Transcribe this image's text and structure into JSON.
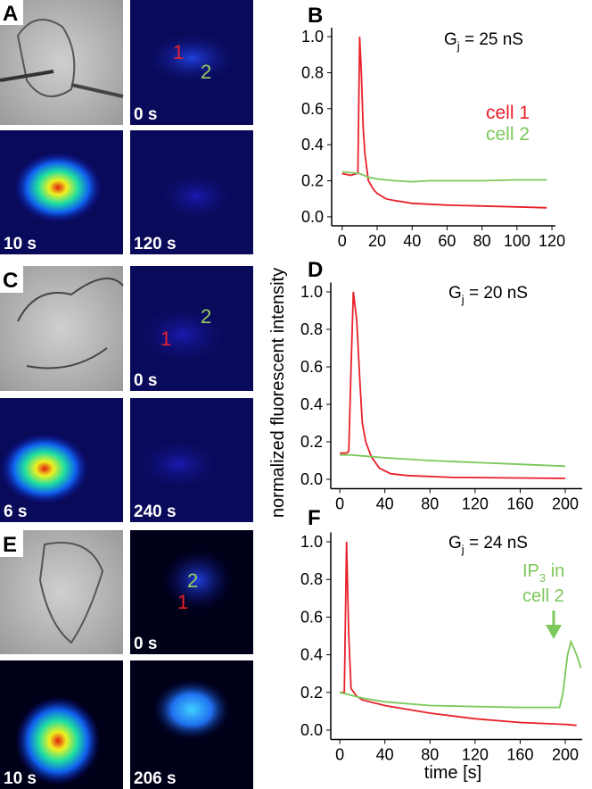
{
  "image_panels": {
    "A": {
      "label": "A",
      "times": [
        "0 s",
        "10 s",
        "120 s"
      ],
      "cell_labels": [
        "1",
        "2"
      ]
    },
    "C": {
      "label": "C",
      "times": [
        "0 s",
        "6 s",
        "240 s"
      ],
      "cell_labels": [
        "1",
        "2"
      ]
    },
    "E": {
      "label": "E",
      "times": [
        "0 s",
        "10 s",
        "206 s"
      ],
      "cell_labels": [
        "1",
        "2"
      ]
    }
  },
  "y_label": "normalized fluorescent intensity",
  "x_label": "time [s]",
  "chart_data": [
    {
      "type": "line",
      "panel_label": "B",
      "annotation": {
        "base": "G",
        "sub": "j",
        "rest": " = 25 nS"
      },
      "xlim": [
        -6,
        122
      ],
      "xticks": [
        0,
        20,
        40,
        60,
        80,
        100,
        120
      ],
      "ylim": [
        -0.05,
        1.05
      ],
      "yticks": [
        {
          "value": 0,
          "label": "0.0"
        },
        {
          "value": 0.2,
          "label": "0.2"
        },
        {
          "value": 0.4,
          "label": "0.4"
        },
        {
          "value": 0.6,
          "label": "0.6"
        },
        {
          "value": 0.8,
          "label": "0.8"
        },
        {
          "value": 1,
          "label": "1.0"
        }
      ],
      "series": [
        {
          "name": "cell 1",
          "color": "#e8202a",
          "x": [
            0,
            5,
            8,
            9,
            10,
            11,
            12,
            13,
            15,
            18,
            20,
            25,
            30,
            40,
            60,
            80,
            100,
            117
          ],
          "values": [
            0.24,
            0.23,
            0.24,
            0.24,
            1.0,
            0.8,
            0.5,
            0.35,
            0.2,
            0.15,
            0.13,
            0.1,
            0.09,
            0.075,
            0.065,
            0.06,
            0.055,
            0.05
          ]
        },
        {
          "name": "cell 2",
          "color": "#7cc85a",
          "x": [
            0,
            5,
            10,
            15,
            20,
            30,
            40,
            50,
            60,
            80,
            100,
            117
          ],
          "values": [
            0.25,
            0.245,
            0.24,
            0.22,
            0.21,
            0.2,
            0.195,
            0.2,
            0.2,
            0.2,
            0.205,
            0.205
          ]
        }
      ]
    },
    {
      "type": "line",
      "panel_label": "D",
      "annotation": {
        "base": "G",
        "sub": "j",
        "rest": " = 20 nS"
      },
      "xlim": [
        -8,
        215
      ],
      "xticks": [
        0,
        40,
        80,
        120,
        160,
        200
      ],
      "ylim": [
        -0.05,
        1.05
      ],
      "yticks": [
        {
          "value": 0,
          "label": "0.0"
        },
        {
          "value": 0.2,
          "label": "0.2"
        },
        {
          "value": 0.4,
          "label": "0.4"
        },
        {
          "value": 0.6,
          "label": "0.6"
        },
        {
          "value": 0.8,
          "label": "0.8"
        },
        {
          "value": 1,
          "label": "1.0"
        }
      ],
      "series": [
        {
          "color": "#e8202a",
          "x": [
            0,
            6,
            8,
            10,
            12,
            15,
            18,
            20,
            23,
            28,
            35,
            45,
            60,
            100,
            200
          ],
          "values": [
            0.14,
            0.14,
            0.15,
            0.6,
            1.0,
            0.85,
            0.5,
            0.3,
            0.2,
            0.12,
            0.06,
            0.03,
            0.02,
            0.01,
            0.005
          ]
        },
        {
          "color": "#7cc85a",
          "x": [
            0,
            10,
            20,
            40,
            80,
            120,
            160,
            200
          ],
          "values": [
            0.13,
            0.13,
            0.125,
            0.115,
            0.1,
            0.09,
            0.08,
            0.07
          ]
        }
      ]
    },
    {
      "type": "line",
      "panel_label": "F",
      "annotation": {
        "base": "G",
        "sub": "j",
        "rest": " = 24 nS"
      },
      "note": {
        "base": "IP",
        "sub": "3",
        "rest": " in",
        "line2": "cell 2"
      },
      "xlim": [
        -8,
        215
      ],
      "xticks": [
        0,
        40,
        80,
        120,
        160,
        200
      ],
      "ylim": [
        -0.05,
        1.05
      ],
      "yticks": [
        {
          "value": 0,
          "label": "0.0"
        },
        {
          "value": 0.2,
          "label": "0.2"
        },
        {
          "value": 0.4,
          "label": "0.4"
        },
        {
          "value": 0.6,
          "label": "0.6"
        },
        {
          "value": 0.8,
          "label": "0.8"
        },
        {
          "value": 1,
          "label": "1.0"
        }
      ],
      "series": [
        {
          "color": "#e8202a",
          "x": [
            0,
            4,
            6,
            8,
            10,
            15,
            20,
            40,
            80,
            120,
            160,
            200,
            210
          ],
          "values": [
            0.2,
            0.2,
            1.0,
            0.5,
            0.22,
            0.18,
            0.16,
            0.13,
            0.09,
            0.06,
            0.04,
            0.03,
            0.025
          ]
        },
        {
          "color": "#7cc85a",
          "x": [
            0,
            20,
            40,
            80,
            120,
            160,
            195,
            198,
            202,
            205,
            210,
            214
          ],
          "values": [
            0.2,
            0.17,
            0.15,
            0.13,
            0.125,
            0.12,
            0.12,
            0.2,
            0.4,
            0.47,
            0.4,
            0.33
          ]
        }
      ]
    }
  ]
}
